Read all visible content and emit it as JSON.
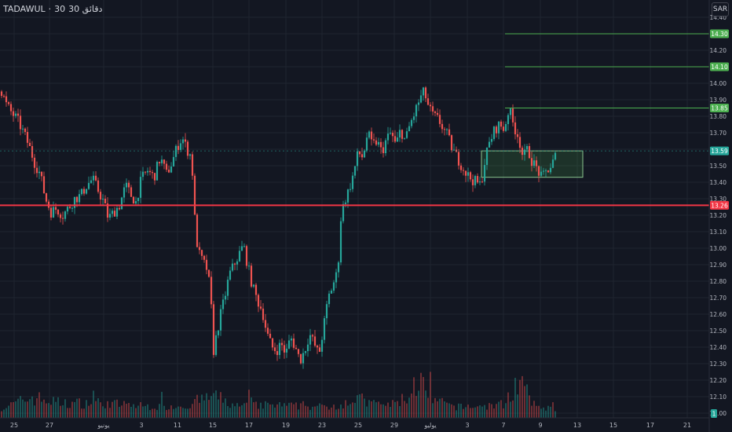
{
  "header": {
    "symbol": "TADAWUL",
    "separator": "·",
    "timeframe": "30",
    "interval_label": "دقائق 30",
    "currency": "SAR"
  },
  "colors": {
    "background": "#131722",
    "grid": "#1f2430",
    "up": "#26a69a",
    "down": "#ef5350",
    "axis_text": "#b2b5be",
    "hline_red": "#f23645",
    "hline_green": "#4caf50"
  },
  "chart_data": {
    "type": "candlestick",
    "y_axis": {
      "ylim": [
        11.98,
        14.47
      ],
      "tick_labels": [
        "14.40",
        "14.30",
        "14.20",
        "14.10",
        "14.00",
        "13.90",
        "13.80",
        "13.70",
        "13.60",
        "13.50",
        "13.40",
        "13.30",
        "13.20",
        "13.10",
        "13.00",
        "12.90",
        "12.80",
        "12.70",
        "12.60",
        "12.50",
        "12.40",
        "12.30",
        "12.20",
        "12.10",
        "12.00"
      ]
    },
    "x_axis": {
      "range": [
        0,
        932
      ],
      "ticks": [
        {
          "label": "25",
          "x": 18
        },
        {
          "label": "27",
          "x": 63
        },
        {
          "label": "يونيو",
          "x": 132
        },
        {
          "label": "3",
          "x": 180
        },
        {
          "label": "11",
          "x": 226
        },
        {
          "label": "15",
          "x": 271
        },
        {
          "label": "17",
          "x": 317
        },
        {
          "label": "19",
          "x": 364
        },
        {
          "label": "23",
          "x": 410
        },
        {
          "label": "25",
          "x": 456
        },
        {
          "label": "29",
          "x": 502
        },
        {
          "label": "يوليو",
          "x": 548
        },
        {
          "label": "3",
          "x": 595
        },
        {
          "label": "7",
          "x": 641
        },
        {
          "label": "9",
          "x": 688
        },
        {
          "label": "13",
          "x": 735
        },
        {
          "label": "15",
          "x": 781
        },
        {
          "label": "17",
          "x": 828
        },
        {
          "label": "21",
          "x": 875
        }
      ]
    },
    "price_path": [
      [
        2,
        13.95
      ],
      [
        8,
        13.87
      ],
      [
        15,
        13.82
      ],
      [
        22,
        13.78
      ],
      [
        30,
        13.7
      ],
      [
        37,
        13.62
      ],
      [
        44,
        13.52
      ],
      [
        51,
        13.45
      ],
      [
        58,
        13.3
      ],
      [
        65,
        13.22
      ],
      [
        72,
        13.24
      ],
      [
        80,
        13.2
      ],
      [
        88,
        13.25
      ],
      [
        95,
        13.3
      ],
      [
        103,
        13.32
      ],
      [
        110,
        13.38
      ],
      [
        118,
        13.42
      ],
      [
        125,
        13.35
      ],
      [
        132,
        13.28
      ],
      [
        138,
        13.18
      ],
      [
        145,
        13.22
      ],
      [
        152,
        13.26
      ],
      [
        160,
        13.38
      ],
      [
        167,
        13.32
      ],
      [
        173,
        13.28
      ],
      [
        180,
        13.42
      ],
      [
        188,
        13.47
      ],
      [
        196,
        13.43
      ],
      [
        204,
        13.55
      ],
      [
        212,
        13.45
      ],
      [
        219,
        13.52
      ],
      [
        226,
        13.62
      ],
      [
        232,
        13.67
      ],
      [
        238,
        13.6
      ],
      [
        244,
        13.55
      ],
      [
        248,
        13.18
      ],
      [
        252,
        12.98
      ],
      [
        258,
        12.92
      ],
      [
        264,
        12.87
      ],
      [
        268,
        12.72
      ],
      [
        272,
        12.38
      ],
      [
        276,
        12.48
      ],
      [
        280,
        12.58
      ],
      [
        286,
        12.7
      ],
      [
        292,
        12.84
      ],
      [
        298,
        12.9
      ],
      [
        304,
        12.96
      ],
      [
        310,
        13.02
      ],
      [
        316,
        12.88
      ],
      [
        322,
        12.76
      ],
      [
        328,
        12.68
      ],
      [
        334,
        12.62
      ],
      [
        340,
        12.48
      ],
      [
        346,
        12.4
      ],
      [
        352,
        12.38
      ],
      [
        358,
        12.42
      ],
      [
        364,
        12.36
      ],
      [
        370,
        12.46
      ],
      [
        376,
        12.4
      ],
      [
        382,
        12.32
      ],
      [
        388,
        12.38
      ],
      [
        394,
        12.48
      ],
      [
        400,
        12.42
      ],
      [
        406,
        12.35
      ],
      [
        412,
        12.52
      ],
      [
        418,
        12.7
      ],
      [
        424,
        12.78
      ],
      [
        430,
        12.86
      ],
      [
        434,
        13.18
      ],
      [
        438,
        13.28
      ],
      [
        444,
        13.35
      ],
      [
        450,
        13.45
      ],
      [
        456,
        13.58
      ],
      [
        462,
        13.55
      ],
      [
        468,
        13.7
      ],
      [
        474,
        13.62
      ],
      [
        480,
        13.65
      ],
      [
        486,
        13.58
      ],
      [
        492,
        13.66
      ],
      [
        498,
        13.7
      ],
      [
        504,
        13.62
      ],
      [
        510,
        13.72
      ],
      [
        516,
        13.65
      ],
      [
        522,
        13.75
      ],
      [
        528,
        13.82
      ],
      [
        534,
        13.9
      ],
      [
        540,
        13.95
      ],
      [
        546,
        13.85
      ],
      [
        552,
        13.8
      ],
      [
        558,
        13.78
      ],
      [
        564,
        13.73
      ],
      [
        570,
        13.68
      ],
      [
        576,
        13.6
      ],
      [
        582,
        13.55
      ],
      [
        588,
        13.5
      ],
      [
        594,
        13.45
      ],
      [
        600,
        13.42
      ],
      [
        606,
        13.4
      ],
      [
        612,
        13.38
      ],
      [
        618,
        13.55
      ],
      [
        624,
        13.65
      ],
      [
        630,
        13.72
      ],
      [
        636,
        13.75
      ],
      [
        642,
        13.72
      ],
      [
        648,
        13.85
      ],
      [
        654,
        13.74
      ],
      [
        660,
        13.68
      ],
      [
        666,
        13.55
      ],
      [
        672,
        13.6
      ],
      [
        678,
        13.52
      ],
      [
        684,
        13.48
      ],
      [
        690,
        13.42
      ],
      [
        696,
        13.47
      ],
      [
        702,
        13.5
      ],
      [
        708,
        13.57
      ]
    ],
    "volume_profile": [
      [
        2,
        0.25
      ],
      [
        40,
        0.9
      ],
      [
        80,
        0.55
      ],
      [
        120,
        0.6
      ],
      [
        200,
        0.35
      ],
      [
        220,
        0.4
      ],
      [
        245,
        0.45
      ],
      [
        270,
        1.0
      ],
      [
        300,
        0.4
      ],
      [
        340,
        0.45
      ],
      [
        380,
        0.4
      ],
      [
        420,
        0.35
      ],
      [
        455,
        0.85
      ],
      [
        475,
        0.45
      ],
      [
        500,
        0.5
      ],
      [
        520,
        0.95
      ],
      [
        534,
        2.0
      ],
      [
        545,
        0.8
      ],
      [
        580,
        0.35
      ],
      [
        620,
        0.4
      ],
      [
        640,
        0.5
      ],
      [
        660,
        1.8
      ],
      [
        680,
        0.45
      ],
      [
        708,
        0.2
      ]
    ],
    "horizontal_lines": [
      {
        "price": 14.3,
        "label": "14.30",
        "color": "green",
        "from_x": 643
      },
      {
        "price": 14.1,
        "label": "14.10",
        "color": "green",
        "from_x": 643
      },
      {
        "price": 13.85,
        "label": "13.85",
        "color": "green",
        "from_x": 643
      },
      {
        "price": 13.26,
        "label": "13.26",
        "color": "red",
        "from_x": 0,
        "width": 2
      }
    ],
    "last_price_label": "13.59",
    "last_price": 13.59,
    "volume_label": "1",
    "zone": {
      "x0": 613,
      "x1": 742,
      "price_high": 13.59,
      "price_low": 13.43
    }
  }
}
